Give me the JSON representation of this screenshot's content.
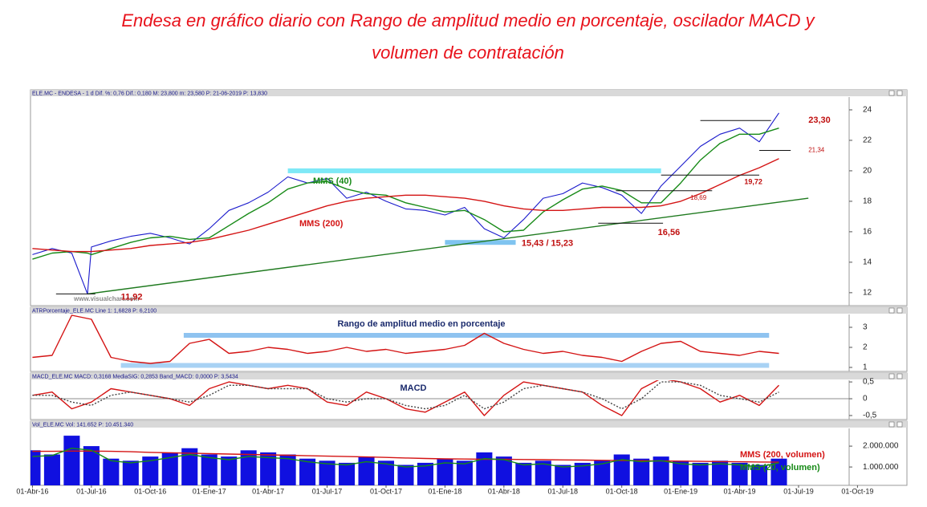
{
  "title": [
    "Endesa en gráfico diario con Rango de amplitud medio en porcentaje, oscilador MACD y",
    "volumen de contratación"
  ],
  "chart_data": [
    {
      "type": "line",
      "header": "ELE.MC - ENDESA - 1 d Dif. %: 0,76 Dif.: 0,180 M: 23,800 m: 23,580 P: 21-06-2019 P: 13,830",
      "watermark": "www.visualchart.com",
      "x": [
        0,
        1,
        2,
        2.8,
        3,
        4,
        5,
        6,
        7,
        8,
        9,
        10,
        11,
        12,
        13,
        14,
        15,
        16,
        17,
        18,
        19,
        20,
        21,
        22,
        23,
        24,
        25,
        26,
        27,
        28,
        29,
        30,
        31,
        32,
        33,
        34,
        35,
        36,
        37,
        38
      ],
      "ylim": [
        11.15,
        24.84
      ],
      "yticks": [
        12,
        14,
        16,
        18,
        20,
        22,
        24
      ],
      "bands": [
        {
          "value": 20.0,
          "color": "#7fe8f6"
        },
        {
          "value": 15.3,
          "color": "#7fc4f0"
        }
      ],
      "levels": [
        {
          "value": 23.3,
          "label": "23,30"
        },
        {
          "value": 21.34,
          "label": "21,34"
        },
        {
          "value": 19.72,
          "label": "19,72"
        },
        {
          "value": 18.69,
          "label": "18,69"
        },
        {
          "value": 16.56,
          "label": "16,56"
        },
        {
          "value": 15.43,
          "label": "15,43 / 15,23"
        },
        {
          "value": 11.92,
          "label": "11,92"
        }
      ],
      "series": [
        {
          "color": "#1a1acc",
          "values": [
            14.5,
            14.9,
            14.6,
            11.92,
            15.0,
            15.4,
            15.7,
            15.9,
            15.6,
            15.2,
            16.2,
            17.4,
            17.9,
            18.6,
            19.6,
            19.2,
            19.5,
            18.2,
            18.6,
            18.0,
            17.5,
            17.4,
            17.1,
            17.6,
            16.2,
            15.6,
            16.8,
            18.2,
            18.5,
            19.2,
            18.9,
            18.4,
            17.2,
            19.0,
            20.3,
            21.6,
            22.4,
            22.8,
            21.9,
            23.8
          ]
        },
        {
          "name": "MMS (40)",
          "color": "#178a17",
          "values": [
            14.2,
            14.6,
            14.7,
            14.6,
            14.5,
            14.9,
            15.3,
            15.6,
            15.7,
            15.5,
            15.6,
            16.4,
            17.2,
            17.9,
            18.8,
            19.2,
            19.3,
            18.8,
            18.5,
            18.4,
            17.9,
            17.6,
            17.3,
            17.4,
            16.8,
            16.0,
            16.1,
            17.3,
            18.1,
            18.8,
            19.0,
            18.7,
            17.9,
            17.9,
            19.2,
            20.7,
            21.8,
            22.4,
            22.4,
            22.8
          ]
        },
        {
          "name": "MMS (200)",
          "color": "#d41414",
          "values": [
            14.9,
            14.8,
            14.7,
            14.7,
            14.7,
            14.8,
            14.9,
            15.1,
            15.2,
            15.3,
            15.5,
            15.8,
            16.1,
            16.5,
            16.9,
            17.3,
            17.7,
            18.0,
            18.2,
            18.3,
            18.4,
            18.4,
            18.3,
            18.2,
            18.0,
            17.7,
            17.5,
            17.4,
            17.4,
            17.5,
            17.6,
            17.6,
            17.6,
            17.7,
            18.0,
            18.5,
            19.1,
            19.7,
            20.2,
            20.8
          ]
        },
        {
          "color": "#1f7a1f",
          "x": [
            2.8,
            39.5
          ],
          "values": [
            11.92,
            18.2
          ]
        }
      ]
    },
    {
      "type": "line",
      "header": "ATRPorcentaje_ELE.MC Line 1: 1,6828 P: 6,2100",
      "annotation": "Rango de amplitud medio en porcentaje",
      "x": [
        0,
        1,
        2,
        3,
        4,
        5,
        6,
        7,
        8,
        9,
        10,
        11,
        12,
        13,
        14,
        15,
        16,
        17,
        18,
        19,
        20,
        21,
        22,
        23,
        24,
        25,
        26,
        27,
        28,
        29,
        30,
        31,
        32,
        33,
        34,
        35,
        36,
        37,
        38
      ],
      "ylim": [
        0.8,
        3.64
      ],
      "yticks": [
        1,
        2,
        3
      ],
      "bands": [
        {
          "value": 2.6,
          "color": "#8fc3f0"
        },
        {
          "value": 1.1,
          "color": "#a8d2f4"
        }
      ],
      "series": [
        {
          "color": "#d41414",
          "values": [
            1.5,
            1.6,
            3.6,
            3.4,
            1.5,
            1.3,
            1.2,
            1.3,
            2.2,
            2.4,
            1.7,
            1.8,
            2.0,
            1.9,
            1.7,
            1.8,
            2.0,
            1.8,
            1.9,
            1.7,
            1.8,
            1.9,
            2.1,
            2.7,
            2.2,
            1.9,
            1.7,
            1.8,
            1.6,
            1.5,
            1.3,
            1.8,
            2.2,
            2.3,
            1.8,
            1.7,
            1.6,
            1.8,
            1.7
          ]
        }
      ]
    },
    {
      "type": "line",
      "header": "MACD_ELE.MC MACD: 0,3168 MediaSIG: 0,2853 Band_MACD: 0,0000 P: 3,5434",
      "annotation": "MACD",
      "x": [
        0,
        1,
        2,
        3,
        4,
        5,
        6,
        7,
        8,
        9,
        10,
        11,
        12,
        13,
        14,
        15,
        16,
        17,
        18,
        19,
        20,
        21,
        22,
        23,
        24,
        25,
        26,
        27,
        28,
        29,
        30,
        31,
        32,
        33,
        34,
        35,
        36,
        37,
        38
      ],
      "ylim": [
        -0.62,
        0.55
      ],
      "yticks": [
        {
          "value": 0.5,
          "label": "0,5"
        },
        0,
        {
          "value": -0.5,
          "label": "-0,5"
        }
      ],
      "series": [
        {
          "color": "#d41414",
          "values": [
            0.1,
            0.2,
            -0.3,
            -0.1,
            0.3,
            0.2,
            0.1,
            0.0,
            -0.2,
            0.3,
            0.5,
            0.4,
            0.3,
            0.4,
            0.3,
            -0.1,
            -0.2,
            0.2,
            0.0,
            -0.3,
            -0.4,
            -0.1,
            0.2,
            -0.5,
            0.1,
            0.5,
            0.4,
            0.3,
            0.2,
            -0.2,
            -0.5,
            0.3,
            0.6,
            0.5,
            0.3,
            -0.1,
            0.1,
            -0.2,
            0.4
          ]
        },
        {
          "color": "#444444",
          "dash": true,
          "values": [
            0.1,
            0.1,
            -0.1,
            -0.2,
            0.1,
            0.2,
            0.1,
            0.0,
            -0.1,
            0.1,
            0.4,
            0.4,
            0.3,
            0.3,
            0.3,
            0.0,
            -0.1,
            0.0,
            0.0,
            -0.2,
            -0.3,
            -0.2,
            0.1,
            -0.3,
            -0.1,
            0.3,
            0.4,
            0.3,
            0.2,
            0.0,
            -0.3,
            0.0,
            0.5,
            0.5,
            0.4,
            0.1,
            0.0,
            -0.1,
            0.2
          ]
        }
      ]
    },
    {
      "type": "bar",
      "header": "Vol_ELE.MC Vol: 141.652 P: 10.451.340",
      "x": [
        0,
        1,
        2,
        3,
        4,
        5,
        6,
        7,
        8,
        9,
        10,
        11,
        12,
        13,
        14,
        15,
        16,
        17,
        18,
        19,
        20,
        21,
        22,
        23,
        24,
        25,
        26,
        27,
        28,
        29,
        30,
        31,
        32,
        33,
        34,
        35,
        36,
        37,
        38
      ],
      "ylim": [
        120000,
        2850000
      ],
      "yticks": [
        {
          "value": 1000000,
          "label": "1.000.000"
        },
        {
          "value": 2000000,
          "label": "2.000.000"
        }
      ],
      "xlim": [
        -0.1,
        43.7
      ],
      "xticks": [
        {
          "value": 0,
          "label": "01-Abr-16"
        },
        {
          "value": 3,
          "label": "01-Jul-16"
        },
        {
          "value": 6,
          "label": "01-Oct-16"
        },
        {
          "value": 9,
          "label": "01-Ene-17"
        },
        {
          "value": 12,
          "label": "01-Abr-17"
        },
        {
          "value": 15,
          "label": "01-Jul-17"
        },
        {
          "value": 18,
          "label": "01-Oct-17"
        },
        {
          "value": 21,
          "label": "01-Ene-18"
        },
        {
          "value": 24,
          "label": "01-Abr-18"
        },
        {
          "value": 27,
          "label": "01-Jul-18"
        },
        {
          "value": 30,
          "label": "01-Oct-18"
        },
        {
          "value": 33,
          "label": "01-Ene-19"
        },
        {
          "value": 36,
          "label": "01-Abr-19"
        },
        {
          "value": 39,
          "label": "01-Jul-19"
        },
        {
          "value": 42,
          "label": "01-Oct-19"
        }
      ],
      "series": [
        {
          "color": "#1010e0",
          "values": [
            1800000,
            1600000,
            2500000,
            2000000,
            1400000,
            1300000,
            1500000,
            1700000,
            1900000,
            1600000,
            1500000,
            1800000,
            1700000,
            1600000,
            1400000,
            1300000,
            1200000,
            1500000,
            1300000,
            1100000,
            1200000,
            1400000,
            1300000,
            1700000,
            1500000,
            1200000,
            1300000,
            1100000,
            1200000,
            1300000,
            1600000,
            1400000,
            1500000,
            1300000,
            1200000,
            1300000,
            1200000,
            1100000,
            1400000
          ]
        },
        {
          "name": "MMS (200, volumen)",
          "type": "line",
          "color": "#d41414",
          "values": [
            1750000,
            1750000,
            1760000,
            1760000,
            1750000,
            1730000,
            1700000,
            1680000,
            1660000,
            1640000,
            1620000,
            1600000,
            1580000,
            1560000,
            1540000,
            1520000,
            1500000,
            1480000,
            1460000,
            1430000,
            1410000,
            1390000,
            1380000,
            1370000,
            1370000,
            1360000,
            1350000,
            1340000,
            1330000,
            1320000,
            1310000,
            1300000,
            1290000,
            1280000,
            1270000,
            1260000,
            1250000,
            1240000,
            1230000
          ]
        },
        {
          "name": "MMS (20, volumen)",
          "type": "line",
          "color": "#178a17",
          "values": [
            1500000,
            1550000,
            1900000,
            1800000,
            1300000,
            1200000,
            1300000,
            1450000,
            1600000,
            1450000,
            1350000,
            1500000,
            1450000,
            1400000,
            1250000,
            1150000,
            1100000,
            1250000,
            1150000,
            1000000,
            1050000,
            1200000,
            1150000,
            1400000,
            1350000,
            1100000,
            1150000,
            1000000,
            1050000,
            1150000,
            1350000,
            1250000,
            1300000,
            1150000,
            1100000,
            1150000,
            1100000,
            1000000,
            1200000
          ]
        }
      ]
    }
  ]
}
